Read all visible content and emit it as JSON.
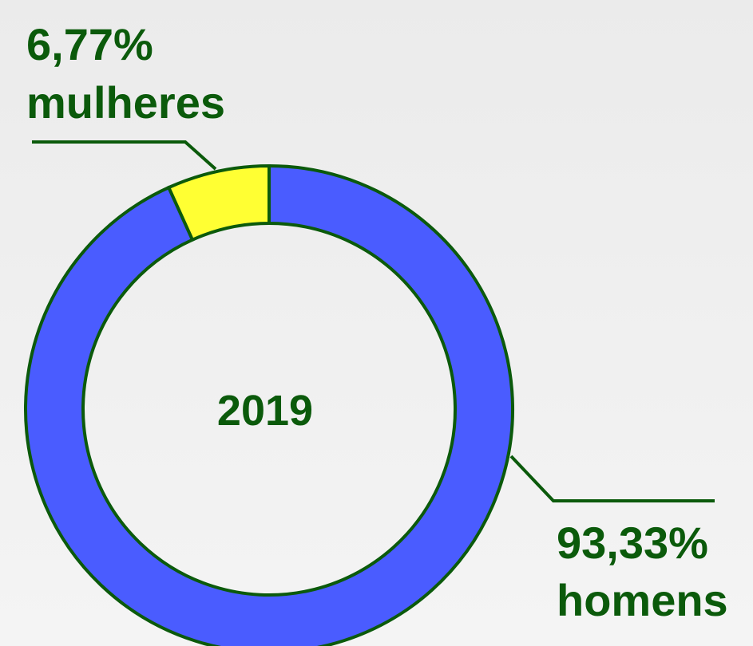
{
  "chart_data": {
    "type": "pie",
    "donut": true,
    "center_label": "2019",
    "categories": [
      "mulheres",
      "homens"
    ],
    "values": [
      6.77,
      93.33
    ],
    "value_labels": [
      "6,77%",
      "93,33%"
    ],
    "colors": [
      "#ffff33",
      "#4a5cff"
    ]
  }
}
